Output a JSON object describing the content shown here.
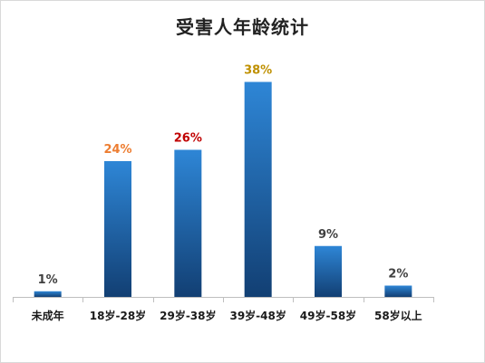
{
  "chart_data": {
    "type": "bar",
    "title": "受害人年龄统计",
    "xlabel": "",
    "ylabel": "",
    "categories": [
      "未成年",
      "18岁-28岁",
      "29岁-38岁",
      "39岁-48岁",
      "49岁-58岁",
      "58岁以上"
    ],
    "values": [
      1,
      24,
      26,
      38,
      9,
      2
    ],
    "data_labels": [
      "1%",
      "24%",
      "26%",
      "38%",
      "9%",
      "2%"
    ],
    "label_colors": [
      "#404040",
      "#ed7d31",
      "#c00000",
      "#bf9000",
      "#404040",
      "#404040"
    ],
    "ylim": [
      0,
      40
    ],
    "unit": "%",
    "grid": false,
    "legend": "none",
    "bar_color_top": "#2e86d6",
    "bar_color_bottom": "#123f73"
  }
}
